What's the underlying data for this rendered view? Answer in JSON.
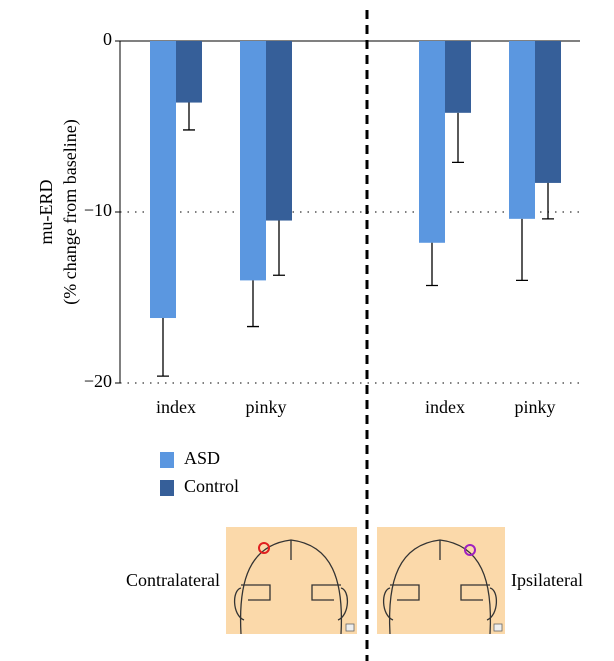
{
  "chart_data": {
    "type": "bar",
    "y_label_line1": "mu-ERD",
    "y_label_line2": "(% change from baseline)",
    "categories": [
      "index",
      "pinky",
      "index",
      "pinky"
    ],
    "series": [
      {
        "name": "ASD",
        "color": "#5b97e0",
        "values": [
          -16.2,
          -14.0,
          -11.8,
          -10.4
        ],
        "errors": [
          3.4,
          2.7,
          2.5,
          3.6
        ]
      },
      {
        "name": "Control",
        "color": "#365f99",
        "values": [
          -3.6,
          -10.5,
          -4.2,
          -8.3
        ],
        "errors": [
          1.6,
          3.2,
          2.9,
          2.1
        ]
      }
    ],
    "ylim": [
      -20,
      0
    ],
    "yticks": [
      0,
      {
        "value": -10,
        "label": "−10"
      },
      {
        "value": -20,
        "label": "−20"
      }
    ],
    "grid": true,
    "panels": [
      "Contralateral",
      "Ipsilateral"
    ]
  }
}
